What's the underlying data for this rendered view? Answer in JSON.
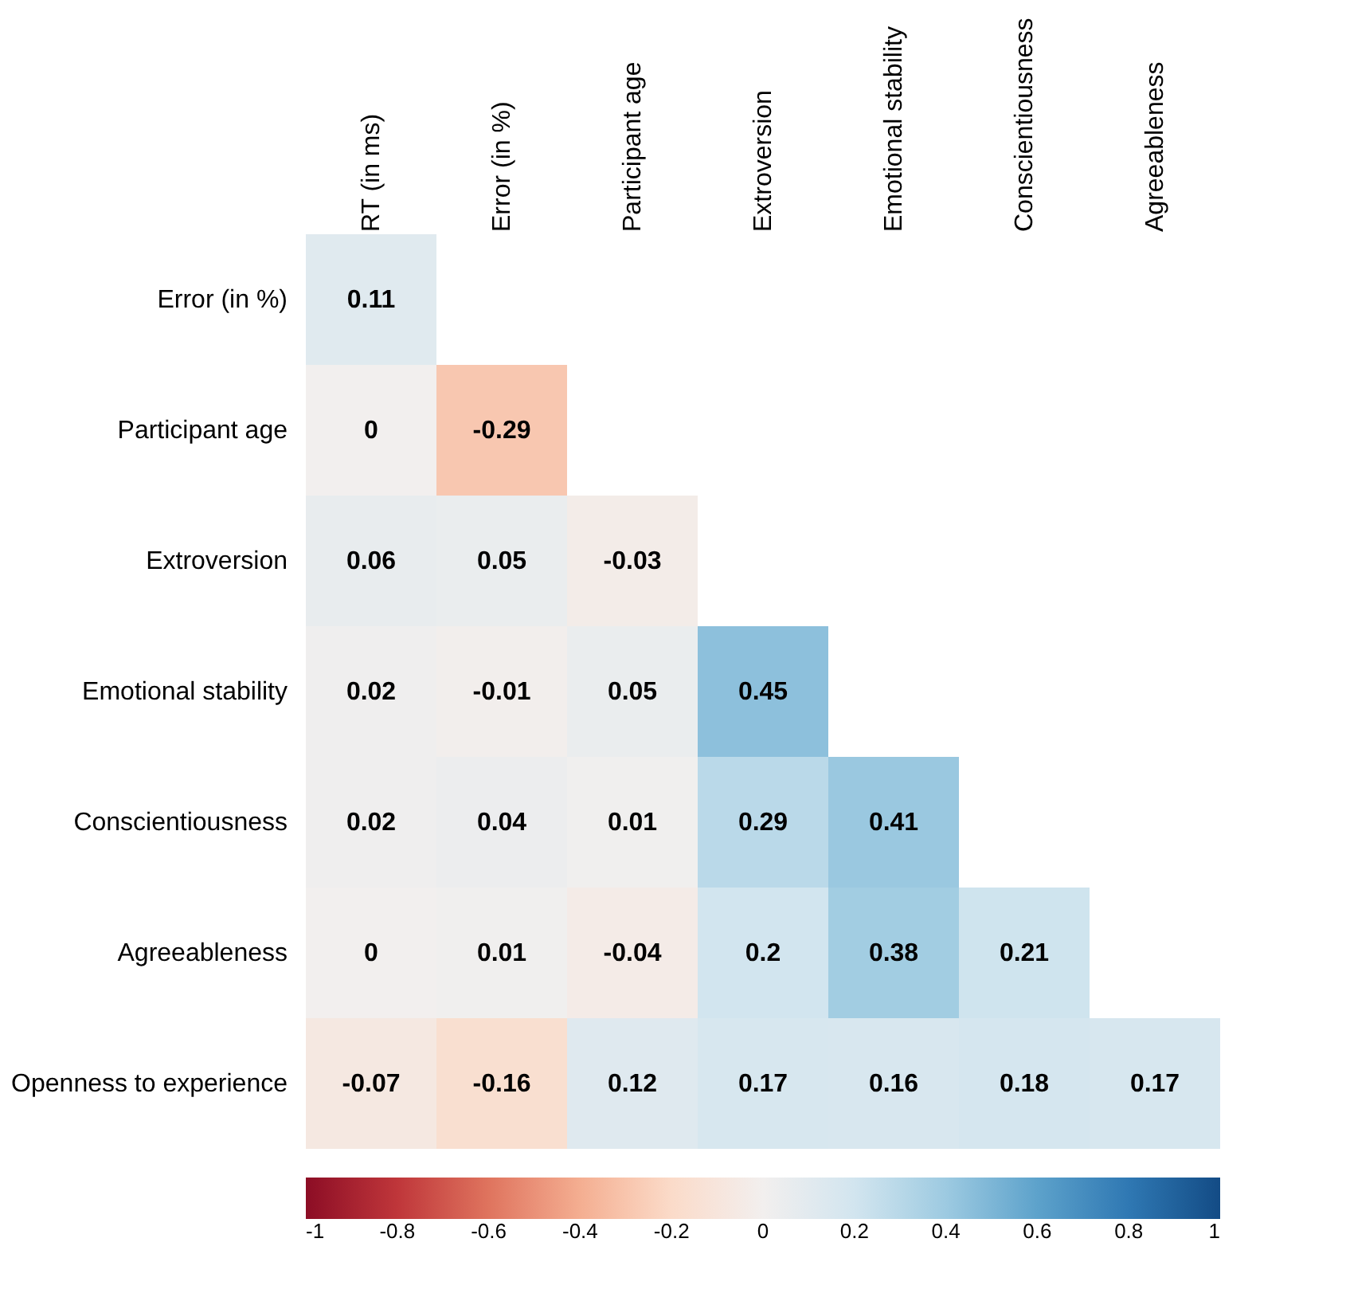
{
  "chart_data": {
    "type": "heatmap",
    "categories": [
      "RT (in ms)",
      "Error (in %)",
      "Participant age",
      "Extroversion",
      "Emotional stability",
      "Conscientiousness",
      "Agreeableness"
    ],
    "y_categories": [
      "Error (in %)",
      "Participant age",
      "Extroversion",
      "Emotional stability",
      "Conscientiousness",
      "Agreeableness",
      "Openness to experience"
    ],
    "cells": [
      [
        0.11,
        null,
        null,
        null,
        null,
        null,
        null
      ],
      [
        0,
        -0.29,
        null,
        null,
        null,
        null,
        null
      ],
      [
        0.06,
        0.05,
        -0.03,
        null,
        null,
        null,
        null
      ],
      [
        0.02,
        -0.01,
        0.05,
        0.45,
        null,
        null,
        null
      ],
      [
        0.02,
        0.04,
        0.01,
        0.29,
        0.41,
        null,
        null
      ],
      [
        0,
        0.01,
        -0.04,
        0.2,
        0.38,
        0.21,
        null
      ],
      [
        -0.07,
        -0.16,
        0.12,
        0.17,
        0.16,
        0.18,
        0.17
      ]
    ],
    "data_labels": true,
    "clim": [
      -1,
      1
    ],
    "cticks": [
      -1,
      -0.8,
      -0.6,
      -0.4,
      -0.2,
      0,
      0.2,
      0.4,
      0.6,
      0.8,
      1
    ]
  }
}
